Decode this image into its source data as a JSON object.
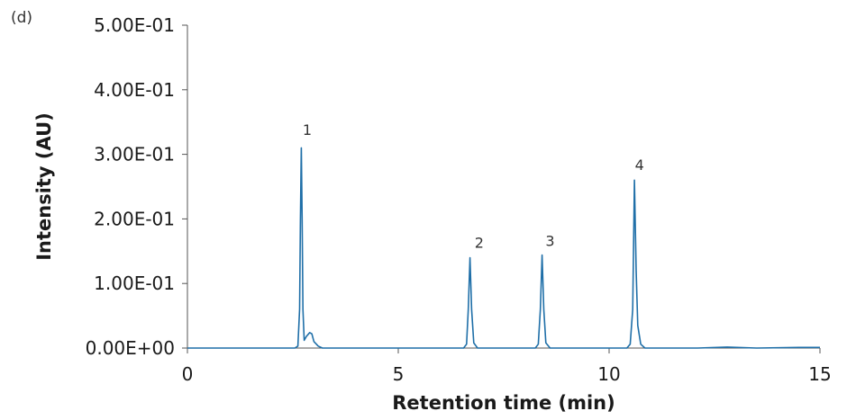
{
  "panel_label": "(d)",
  "chart_data": {
    "type": "line",
    "xlabel": "Retention time (min)",
    "ylabel": "Intensity (AU)",
    "xlim": [
      0,
      15
    ],
    "ylim": [
      0,
      0.5
    ],
    "x_ticks": [
      0,
      5,
      10,
      15
    ],
    "x_tick_labels": [
      "0",
      "5",
      "10",
      "15"
    ],
    "y_ticks": [
      0,
      0.1,
      0.2,
      0.3,
      0.4,
      0.5
    ],
    "y_tick_labels": [
      "0.00E+00",
      "1.00E-01",
      "2.00E-01",
      "3.00E-01",
      "4.00E-01",
      "5.00E-01"
    ],
    "grid": false,
    "line_color": "#1f6fa8",
    "series": [
      {
        "points": [
          [
            0.0,
            0.0
          ],
          [
            2.55,
            0.0
          ],
          [
            2.62,
            0.003
          ],
          [
            2.66,
            0.06
          ],
          [
            2.68,
            0.2
          ],
          [
            2.7,
            0.31
          ],
          [
            2.72,
            0.2
          ],
          [
            2.74,
            0.06
          ],
          [
            2.77,
            0.012
          ],
          [
            2.82,
            0.018
          ],
          [
            2.9,
            0.024
          ],
          [
            2.95,
            0.022
          ],
          [
            3.0,
            0.01
          ],
          [
            3.1,
            0.003
          ],
          [
            3.2,
            0.0
          ],
          [
            6.55,
            0.0
          ],
          [
            6.62,
            0.006
          ],
          [
            6.66,
            0.06
          ],
          [
            6.7,
            0.14
          ],
          [
            6.74,
            0.06
          ],
          [
            6.79,
            0.008
          ],
          [
            6.88,
            0.0
          ],
          [
            8.25,
            0.0
          ],
          [
            8.32,
            0.006
          ],
          [
            8.37,
            0.06
          ],
          [
            8.41,
            0.144
          ],
          [
            8.45,
            0.06
          ],
          [
            8.5,
            0.008
          ],
          [
            8.6,
            0.0
          ],
          [
            10.42,
            0.0
          ],
          [
            10.5,
            0.006
          ],
          [
            10.56,
            0.06
          ],
          [
            10.6,
            0.26
          ],
          [
            10.64,
            0.12
          ],
          [
            10.68,
            0.035
          ],
          [
            10.75,
            0.006
          ],
          [
            10.85,
            0.0
          ],
          [
            12.1,
            0.0
          ],
          [
            12.8,
            0.0015
          ],
          [
            13.5,
            0.0
          ],
          [
            14.5,
            0.001
          ],
          [
            15.0,
            0.001
          ]
        ]
      }
    ],
    "annotations": [
      {
        "text": "1",
        "x": 2.84,
        "y": 0.33
      },
      {
        "text": "2",
        "x": 6.92,
        "y": 0.155
      },
      {
        "text": "3",
        "x": 8.6,
        "y": 0.158
      },
      {
        "text": "4",
        "x": 10.72,
        "y": 0.276
      }
    ]
  }
}
